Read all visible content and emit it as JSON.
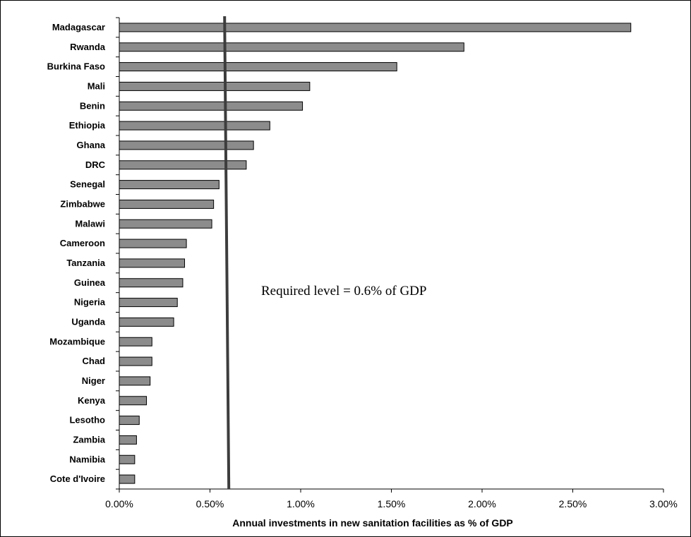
{
  "chart_data": {
    "type": "bar",
    "orientation": "horizontal",
    "categories": [
      "Madagascar",
      "Rwanda",
      "Burkina Faso",
      "Mali",
      "Benin",
      "Ethiopia",
      "Ghana",
      "DRC",
      "Senegal",
      "Zimbabwe",
      "Malawi",
      "Cameroon",
      "Tanzania",
      "Guinea",
      "Nigeria",
      "Uganda",
      "Mozambique",
      "Chad",
      "Niger",
      "Kenya",
      "Lesotho",
      "Zambia",
      "Namibia",
      "Cote d'Ivoire"
    ],
    "values": [
      2.82,
      1.9,
      1.53,
      1.05,
      1.01,
      0.83,
      0.74,
      0.7,
      0.55,
      0.52,
      0.51,
      0.37,
      0.36,
      0.35,
      0.32,
      0.3,
      0.18,
      0.18,
      0.17,
      0.15,
      0.11,
      0.095,
      0.085,
      0.085
    ],
    "xlabel": "Annual investments in new sanitation facilities as % of GDP",
    "ylabel": "",
    "xlim": [
      0,
      3.0
    ],
    "x_ticks": [
      "0.00%",
      "0.50%",
      "1.00%",
      "1.50%",
      "2.00%",
      "2.50%",
      "3.00%"
    ],
    "x_tick_values": [
      0,
      0.5,
      1.0,
      1.5,
      2.0,
      2.5,
      3.0
    ],
    "grid": false,
    "reference_line": {
      "value": 0.6,
      "label": "Required level = 0.6% of GDP"
    },
    "colors": {
      "bar": "#8c8c8c",
      "reference_line": "#3d3d3d"
    }
  }
}
